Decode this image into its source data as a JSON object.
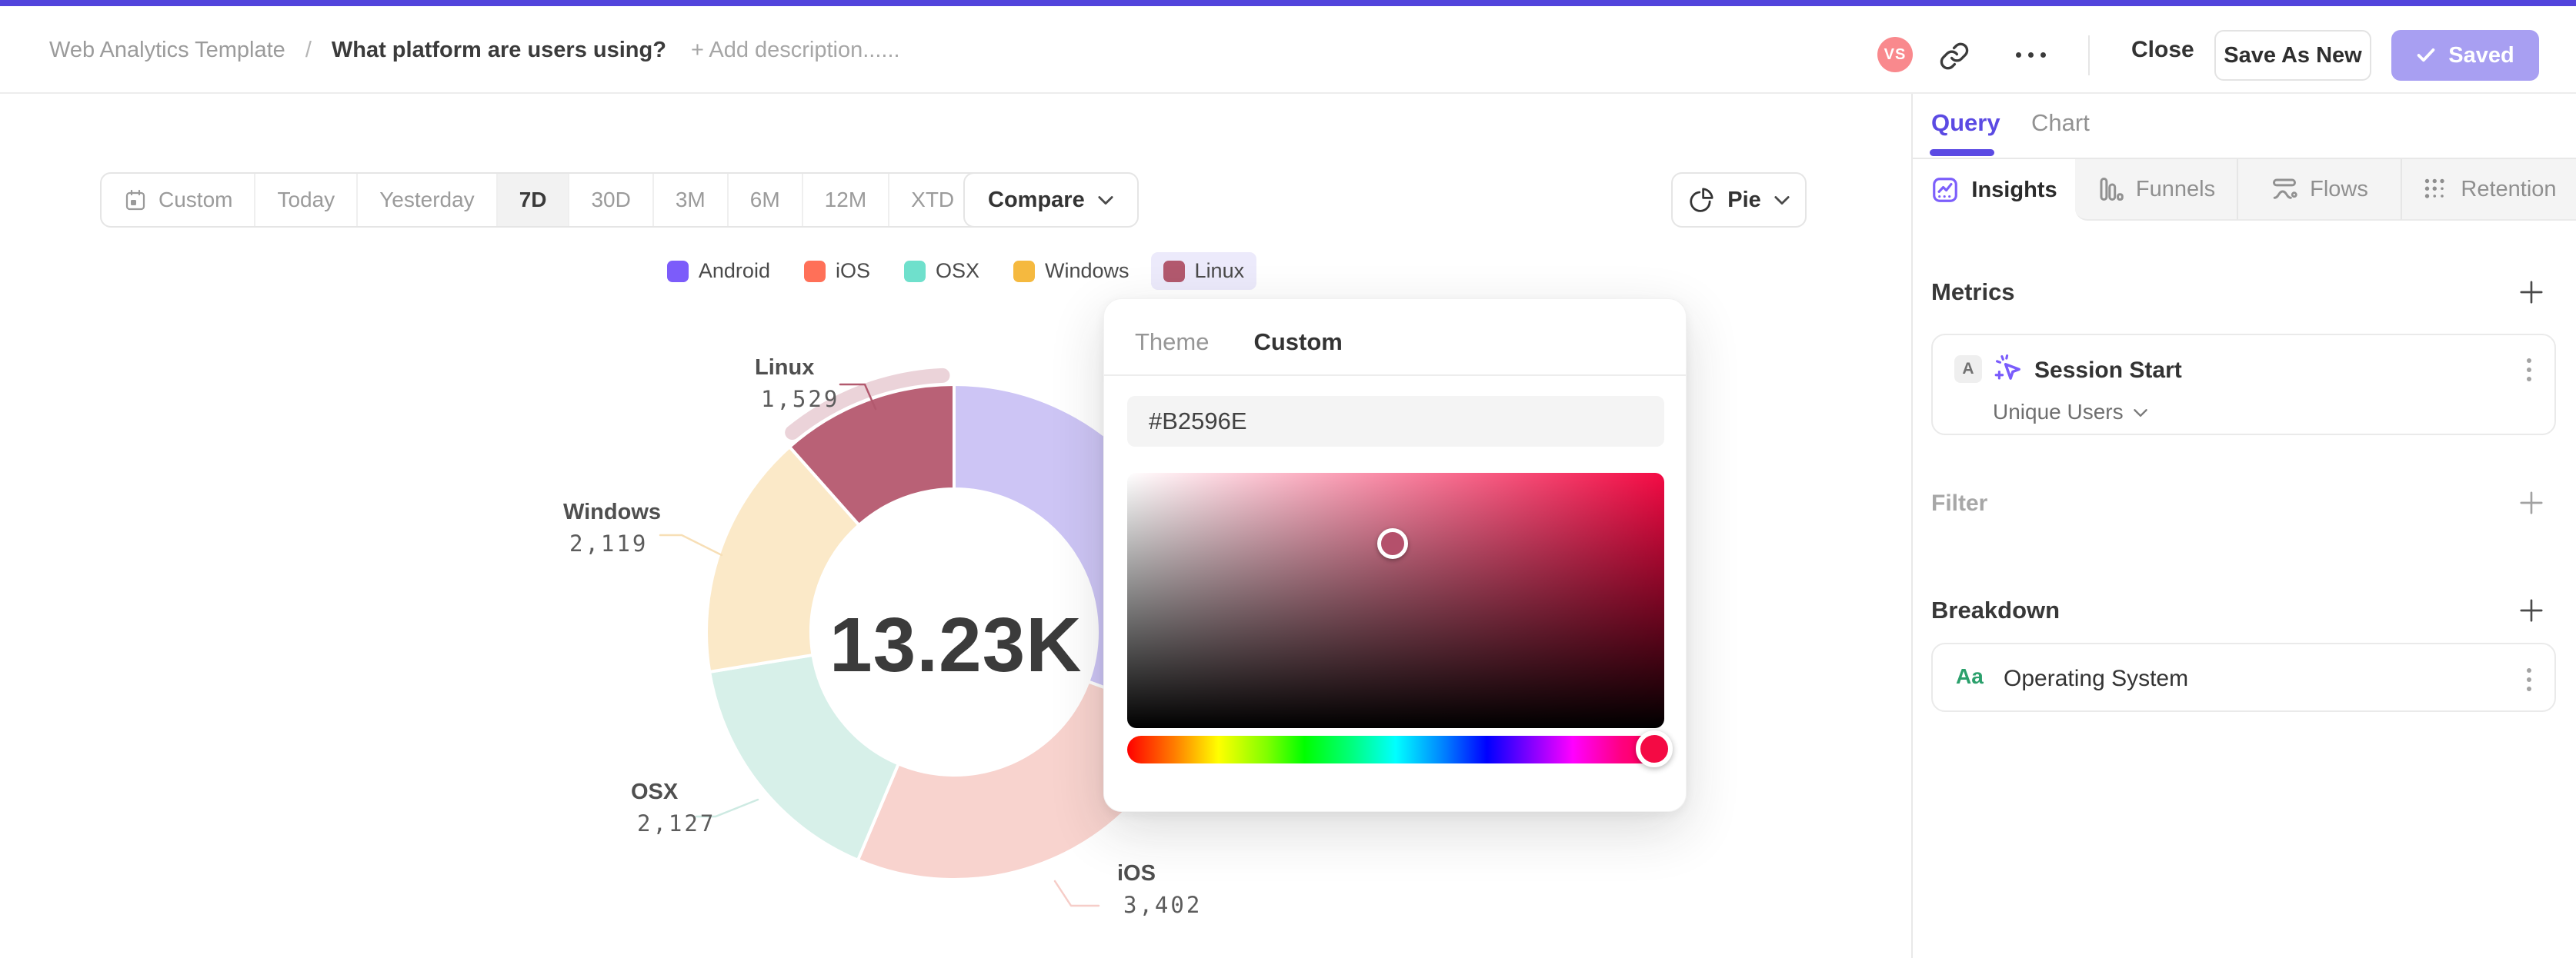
{
  "header": {
    "breadcrumb_root": "Web Analytics Template",
    "separator": "/",
    "title": "What platform are users using?",
    "add_description": "+ Add description......",
    "avatar_initials": "VS",
    "close_label": "Close",
    "save_as_new_label": "Save As New",
    "saved_label": "Saved"
  },
  "toolbar": {
    "date_ranges": [
      "Custom",
      "Today",
      "Yesterday",
      "7D",
      "30D",
      "3M",
      "6M",
      "12M",
      "XTD"
    ],
    "selected_range": "7D",
    "compare_label": "Compare",
    "chart_type_label": "Pie"
  },
  "chart_data": {
    "type": "pie",
    "center_total": "13.23K",
    "selected_segment": "Linux",
    "selected_ring_color": "#ebd3d9",
    "series": [
      {
        "name": "Android",
        "value": 4053,
        "legend_color": "#7c5cfa",
        "fill": "#cdc5f5",
        "label_visible": false
      },
      {
        "name": "iOS",
        "value": 3402,
        "display_value": "3,402",
        "legend_color": "#ff7058",
        "fill": "#f8d3ce",
        "leader_color": "#f6cdc8",
        "label_visible": true
      },
      {
        "name": "OSX",
        "value": 2127,
        "display_value": "2,127",
        "legend_color": "#6fe0cc",
        "fill": "#d7f0e9",
        "leader_color": "#cdeae2",
        "label_visible": true
      },
      {
        "name": "Windows",
        "value": 2119,
        "display_value": "2,119",
        "legend_color": "#f5b93f",
        "fill": "#fbe9c8",
        "leader_color": "#f7dfb6",
        "label_visible": true
      },
      {
        "name": "Linux",
        "value": 1529,
        "display_value": "1,529",
        "legend_color": "#b2596e",
        "fill": "#b96176",
        "leader_color": "#b2596e",
        "selected": true,
        "label_visible": true
      }
    ],
    "labels": {
      "linux": {
        "name": "Linux",
        "value": "1,529"
      },
      "windows": {
        "name": "Windows",
        "value": "2,119"
      },
      "osx": {
        "name": "OSX",
        "value": "2,127"
      },
      "ios": {
        "name": "iOS",
        "value": "3,402"
      }
    }
  },
  "color_picker": {
    "theme_tab": "Theme",
    "custom_tab": "Custom",
    "hex_value": "#B2596E",
    "hue_color": "#f40a44"
  },
  "sidebar": {
    "query_tab": "Query",
    "chart_tab": "Chart",
    "mode_tabs": [
      "Insights",
      "Funnels",
      "Flows",
      "Retention"
    ],
    "metrics": {
      "heading": "Metrics",
      "item": {
        "badge": "A",
        "event": "Session Start",
        "aggregation": "Unique Users"
      }
    },
    "filter": {
      "heading": "Filter"
    },
    "breakdown": {
      "heading": "Breakdown",
      "item": {
        "badge": "Aa",
        "property": "Operating System"
      }
    }
  },
  "colors": {
    "accent": "#5b4ae3",
    "top_bar": "#5244dc",
    "saved_bg": "#a89ff2",
    "avatar_bg": "#f9898d"
  }
}
